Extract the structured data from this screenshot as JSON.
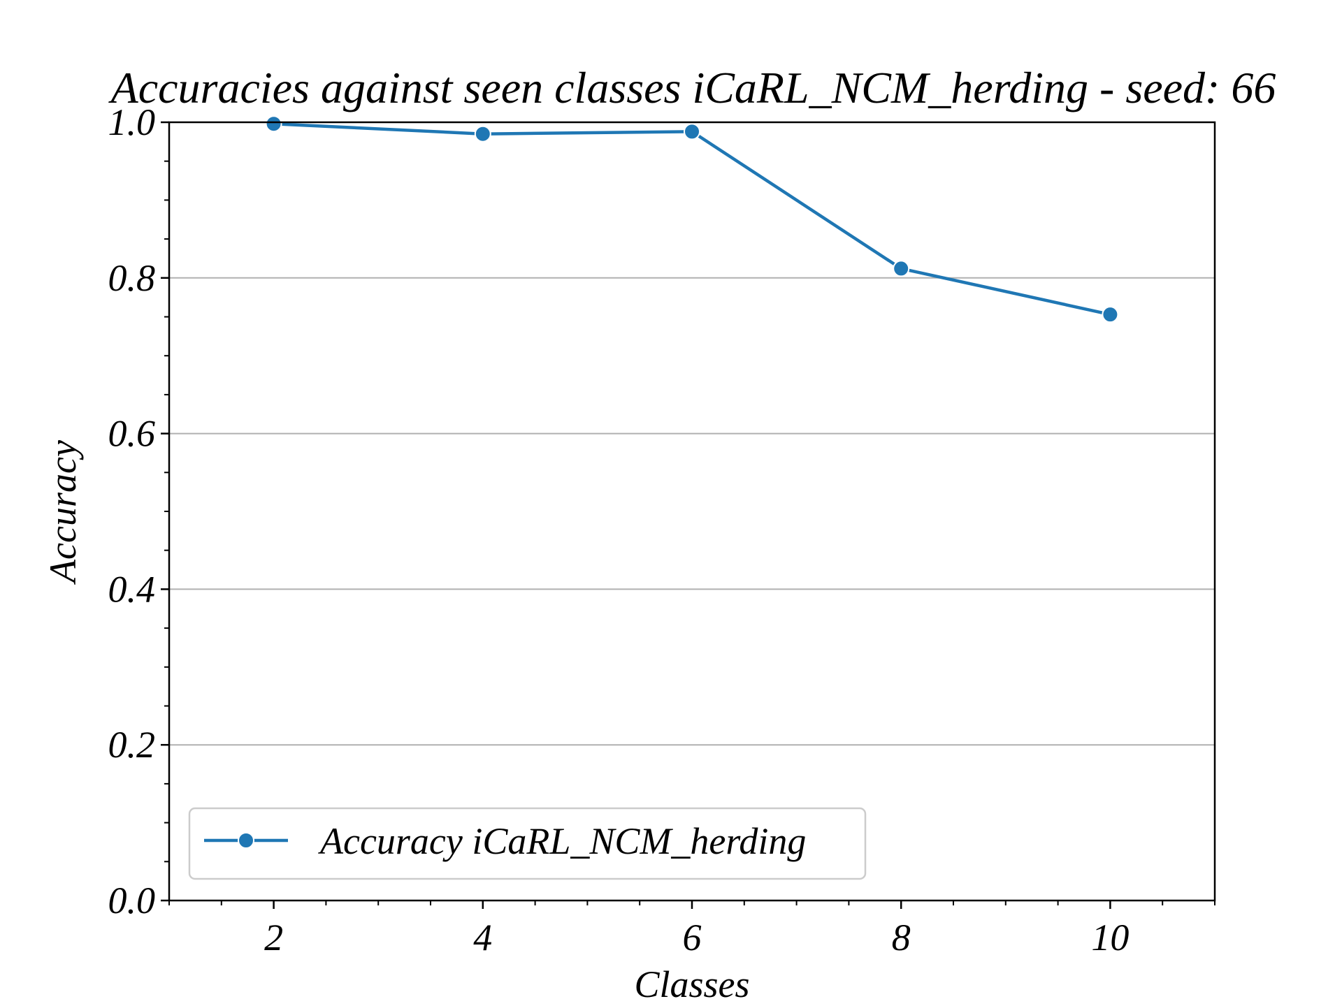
{
  "chart_data": {
    "type": "line",
    "title": "Accuracies against seen classes iCaRL_NCM_herding - seed: 66",
    "xlabel": "Classes",
    "ylabel": "Accuracy",
    "x": [
      2,
      4,
      6,
      8,
      10
    ],
    "series": [
      {
        "name": "Accuracy iCaRL_NCM_herding",
        "color": "#1f77b4",
        "marker": "circle",
        "values": [
          0.998,
          0.985,
          0.988,
          0.812,
          0.753
        ]
      }
    ],
    "xlim": [
      1,
      11
    ],
    "ylim": [
      0.0,
      1.0
    ],
    "xticks": [
      "2",
      "4",
      "6",
      "8",
      "10"
    ],
    "yticks": [
      "0.0",
      "0.2",
      "0.4",
      "0.6",
      "0.8",
      "1.0"
    ],
    "grid": "horizontal",
    "legend_position": "lower-left"
  }
}
